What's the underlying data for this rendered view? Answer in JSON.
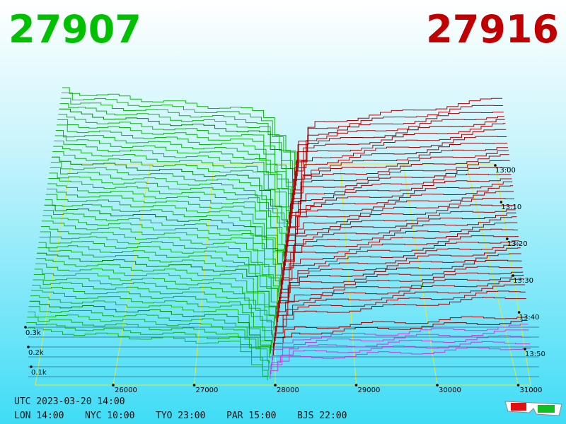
{
  "header": {
    "bid": "27907",
    "ask": "27916"
  },
  "axes": {
    "price_labels": [
      "26000",
      "27000",
      "28000",
      "29000",
      "30000",
      "31000"
    ],
    "time_labels": [
      "13:00",
      "13:10",
      "13:20",
      "13:30",
      "13:40",
      "13:50"
    ],
    "volume_labels": [
      "0.3k",
      "0.2k",
      "0.1k"
    ]
  },
  "footer": {
    "utc": "UTC 2023-03-20 14:00",
    "cities": [
      "LON 14:00",
      "NYC 10:00",
      "TYO 23:00",
      "PAR 15:00",
      "BJS 22:00"
    ]
  }
}
